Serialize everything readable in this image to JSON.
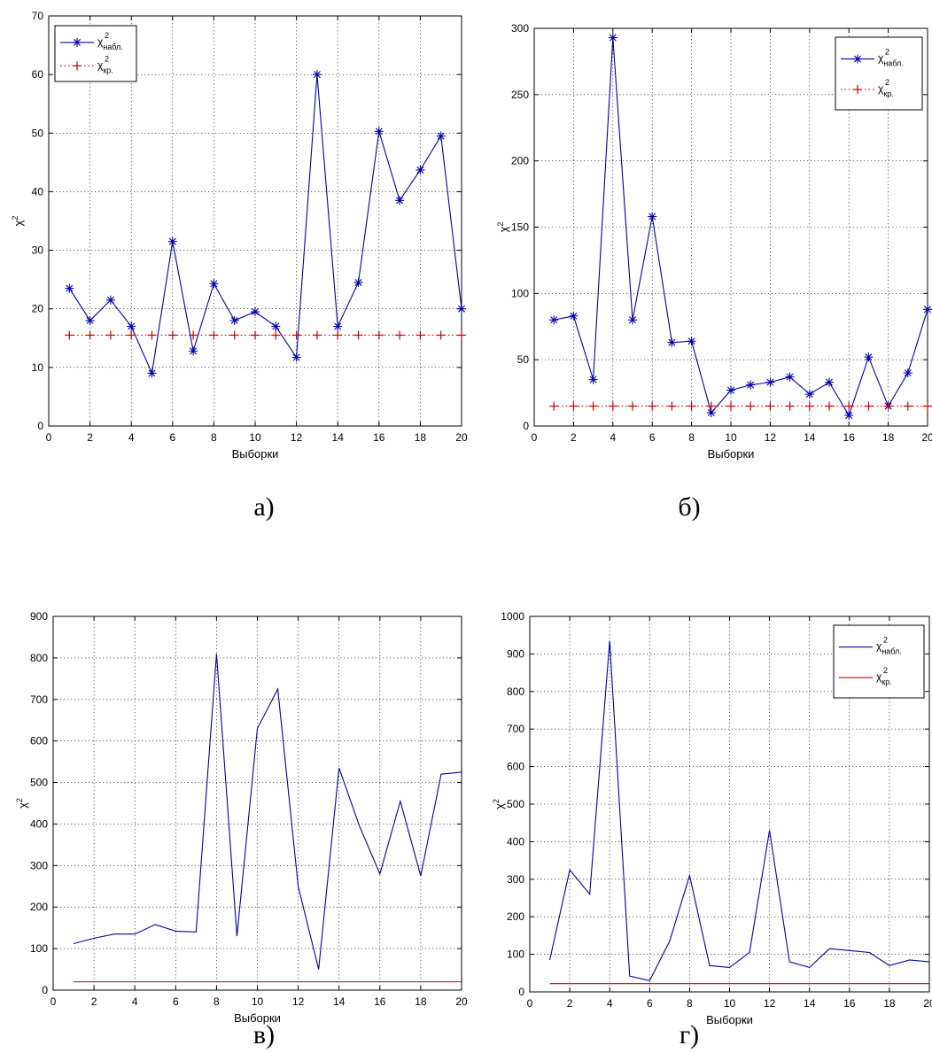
{
  "chart_data": [
    {
      "type": "line",
      "caption": "а)",
      "xlabel": "Выборки",
      "ylabel": "χ",
      "ylabel_sup": "2",
      "xlim": [
        0,
        20
      ],
      "ylim": [
        0,
        70
      ],
      "xticks": [
        0,
        2,
        4,
        6,
        8,
        10,
        12,
        14,
        16,
        18,
        20
      ],
      "yticks": [
        0,
        10,
        20,
        30,
        40,
        50,
        60,
        70
      ],
      "grid": true,
      "legend_position": "top-left",
      "x": [
        1,
        2,
        3,
        4,
        5,
        6,
        7,
        8,
        9,
        10,
        11,
        12,
        13,
        14,
        15,
        16,
        17,
        18,
        19,
        20
      ],
      "series": [
        {
          "name": "χ",
          "sub": "набл.",
          "sup": "2",
          "color": "#0000aa",
          "style": "solid",
          "marker": "star",
          "values": [
            23.5,
            18,
            21.5,
            17,
            9,
            31.5,
            12.8,
            24.3,
            18,
            19.5,
            17,
            11.7,
            60,
            17,
            24.5,
            50.3,
            38.5,
            43.7,
            49.5,
            20
          ]
        },
        {
          "name": "χ",
          "sub": "кр.",
          "sup": "2",
          "color": "#cc0000",
          "style": "dotted",
          "marker": "plus",
          "values": [
            15.5,
            15.5,
            15.5,
            15.5,
            15.5,
            15.5,
            15.5,
            15.5,
            15.5,
            15.5,
            15.5,
            15.5,
            15.5,
            15.5,
            15.5,
            15.5,
            15.5,
            15.5,
            15.5,
            15.5
          ]
        }
      ]
    },
    {
      "type": "line",
      "caption": "б)",
      "xlabel": "Выборки",
      "ylabel": "χ",
      "ylabel_sup": "2",
      "xlim": [
        0,
        20
      ],
      "ylim": [
        0,
        300
      ],
      "xticks": [
        0,
        2,
        4,
        6,
        8,
        10,
        12,
        14,
        16,
        18,
        20
      ],
      "yticks": [
        0,
        50,
        100,
        150,
        200,
        250,
        300
      ],
      "grid": true,
      "legend_position": "top-right",
      "x": [
        1,
        2,
        3,
        4,
        5,
        6,
        7,
        8,
        9,
        10,
        11,
        12,
        13,
        14,
        15,
        16,
        17,
        18,
        19,
        20
      ],
      "series": [
        {
          "name": "χ",
          "sub": "набл.",
          "sup": "2",
          "color": "#0000aa",
          "style": "solid",
          "marker": "star",
          "values": [
            80,
            83,
            35,
            293,
            80,
            158,
            63,
            64,
            10,
            27,
            31,
            33,
            37,
            24,
            33,
            8,
            52,
            15,
            40,
            88
          ]
        },
        {
          "name": "χ",
          "sub": "кр.",
          "sup": "2",
          "color": "#cc0000",
          "style": "dotted",
          "marker": "plus",
          "values": [
            15,
            15,
            15,
            15,
            15,
            15,
            15,
            15,
            15,
            15,
            15,
            15,
            15,
            15,
            15,
            15,
            15,
            15,
            15,
            15
          ]
        }
      ]
    },
    {
      "type": "line",
      "caption": "в)",
      "xlabel": "Выборки",
      "ylabel": "χ",
      "ylabel_sup": "2",
      "xlim": [
        0,
        20
      ],
      "ylim": [
        0,
        900
      ],
      "xticks": [
        0,
        2,
        4,
        6,
        8,
        10,
        12,
        14,
        16,
        18,
        20
      ],
      "yticks": [
        0,
        100,
        200,
        300,
        400,
        500,
        600,
        700,
        800,
        900
      ],
      "grid": true,
      "legend_position": "none",
      "x": [
        1,
        2,
        3,
        4,
        5,
        6,
        7,
        8,
        9,
        10,
        11,
        12,
        13,
        14,
        15,
        16,
        17,
        18,
        19,
        20
      ],
      "series": [
        {
          "name": "",
          "color": "#0000aa",
          "style": "solid",
          "marker": "none",
          "values": [
            112,
            125,
            135,
            135,
            158,
            142,
            140,
            810,
            130,
            630,
            725,
            250,
            50,
            535,
            395,
            280,
            455,
            275,
            520,
            525
          ]
        },
        {
          "name": "",
          "color": "#cc0000",
          "style": "solid",
          "marker": "none",
          "values": [
            20,
            20,
            20,
            20,
            20,
            20,
            20,
            20,
            20,
            20,
            20,
            20,
            20,
            20,
            20,
            20,
            20,
            20,
            20,
            20
          ]
        }
      ]
    },
    {
      "type": "line",
      "caption": "г)",
      "xlabel": "Выборки",
      "ylabel": "χ",
      "ylabel_sup": "2",
      "xlim": [
        0,
        20
      ],
      "ylim": [
        0,
        1000
      ],
      "xticks": [
        0,
        2,
        4,
        6,
        8,
        10,
        12,
        14,
        16,
        18,
        20
      ],
      "yticks": [
        0,
        100,
        200,
        300,
        400,
        500,
        600,
        700,
        800,
        900,
        1000
      ],
      "grid": true,
      "legend_position": "top-right",
      "x": [
        1,
        2,
        3,
        4,
        5,
        6,
        7,
        8,
        9,
        10,
        11,
        12,
        13,
        14,
        15,
        16,
        17,
        18,
        19,
        20
      ],
      "series": [
        {
          "name": "χ",
          "sub": "набл.",
          "sup": "2",
          "color": "#0000aa",
          "style": "solid",
          "marker": "none",
          "values": [
            85,
            325,
            260,
            935,
            42,
            30,
            135,
            310,
            70,
            65,
            105,
            430,
            80,
            65,
            115,
            110,
            105,
            70,
            85,
            80
          ]
        },
        {
          "name": "χ",
          "sub": "кр.",
          "sup": "2",
          "color": "#cc0000",
          "style": "solid",
          "marker": "none",
          "values": [
            22,
            22,
            22,
            22,
            22,
            22,
            22,
            22,
            22,
            22,
            22,
            22,
            22,
            22,
            22,
            22,
            22,
            22,
            22,
            22
          ]
        }
      ]
    }
  ]
}
